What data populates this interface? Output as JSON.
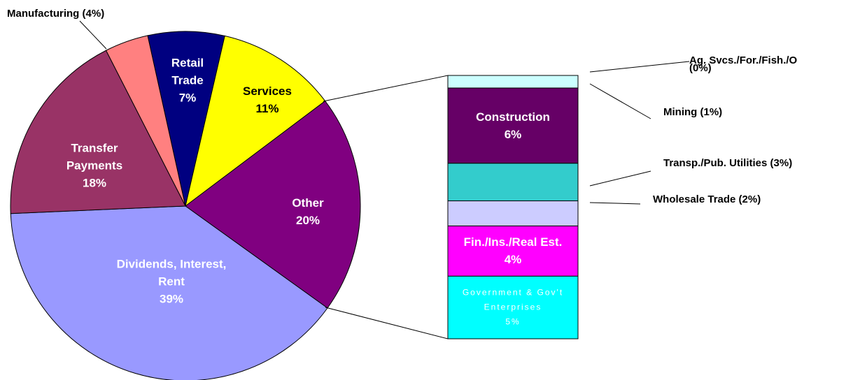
{
  "chart_data": [
    {
      "type": "pie",
      "categories": [
        "Manufacturing",
        "Retail Trade",
        "Services",
        "Other",
        "Dividends, Interest, Rent",
        "Transfer Payments"
      ],
      "values": [
        4,
        7,
        11,
        20,
        39,
        18
      ],
      "value_labels": [
        "(4%)",
        "7%",
        "11%",
        "20%",
        "39%",
        "18%"
      ],
      "colors": [
        "#ff8080",
        "#000080",
        "#ffff00",
        "#800080",
        "#9999ff",
        "#993366"
      ]
    },
    {
      "type": "stacked_bar",
      "categories": [
        "Government & Gov't Enterprises",
        "Fin./Ins./Real Est.",
        "Wholesale Trade",
        "Transp./Pub. Utilities",
        "Construction",
        "Mining",
        "Ag. Svcs./For./Fish./O"
      ],
      "values": [
        5,
        4,
        2,
        3,
        6,
        1,
        0
      ],
      "value_labels": [
        "5%",
        "4%",
        "(2%)",
        "(3%)",
        "6%",
        "(1%)",
        "(0%)"
      ],
      "colors": [
        "#00ffff",
        "#ff00ff",
        "#ccccff",
        "#33cccc",
        "#660066",
        "#ccffff",
        "#ffffff"
      ]
    }
  ]
}
